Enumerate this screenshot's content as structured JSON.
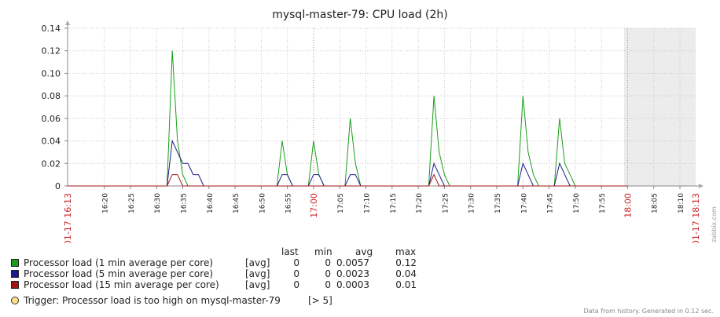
{
  "chart_data": {
    "type": "line",
    "title": "mysql-master-79: CPU load (2h)",
    "y_ticks": [
      "0.14",
      "0.12",
      "0.10",
      "0.08",
      "0.06",
      "0.04",
      "0.02",
      "0"
    ],
    "ylim": [
      0,
      0.14
    ],
    "xlim": [
      "16:13",
      "18:13"
    ],
    "x_start_label": "01-17 16:13",
    "x_end_label": "01-17 18:13",
    "x_ticks": [
      "16:20",
      "16:25",
      "16:30",
      "16:35",
      "16:40",
      "16:45",
      "16:50",
      "16:55",
      "17:00",
      "17:05",
      "17:10",
      "17:15",
      "17:20",
      "17:25",
      "17:30",
      "17:35",
      "17:40",
      "17:45",
      "17:50",
      "17:55",
      "18:00",
      "18:05",
      "18:10"
    ],
    "x_ticks_red": [
      "17:00",
      "18:00"
    ],
    "grid": true,
    "no_data_from": "18:00",
    "series": [
      {
        "name": "Processor load (1 min average per core)",
        "color": "#1a9e1a",
        "points": [
          [
            "16:13",
            0
          ],
          [
            "16:32",
            0
          ],
          [
            "16:33",
            0.12
          ],
          [
            "16:34",
            0.04
          ],
          [
            "16:35",
            0.01
          ],
          [
            "16:36",
            0
          ],
          [
            "16:53",
            0
          ],
          [
            "16:54",
            0.04
          ],
          [
            "16:55",
            0.01
          ],
          [
            "16:56",
            0
          ],
          [
            "16:59",
            0
          ],
          [
            "17:00",
            0.04
          ],
          [
            "17:01",
            0.01
          ],
          [
            "17:02",
            0
          ],
          [
            "17:06",
            0
          ],
          [
            "17:07",
            0.06
          ],
          [
            "17:08",
            0.02
          ],
          [
            "17:09",
            0
          ],
          [
            "17:22",
            0
          ],
          [
            "17:23",
            0.08
          ],
          [
            "17:24",
            0.03
          ],
          [
            "17:25",
            0.01
          ],
          [
            "17:26",
            0
          ],
          [
            "17:39",
            0
          ],
          [
            "17:40",
            0.08
          ],
          [
            "17:41",
            0.03
          ],
          [
            "17:42",
            0.01
          ],
          [
            "17:43",
            0
          ],
          [
            "17:46",
            0
          ],
          [
            "17:47",
            0.06
          ],
          [
            "17:48",
            0.02
          ],
          [
            "17:49",
            0.01
          ],
          [
            "17:50",
            0
          ],
          [
            "18:00",
            0
          ]
        ]
      },
      {
        "name": "Processor load (5 min average per core)",
        "color": "#1a1a8c",
        "points": [
          [
            "16:13",
            0
          ],
          [
            "16:32",
            0
          ],
          [
            "16:33",
            0.04
          ],
          [
            "16:34",
            0.03
          ],
          [
            "16:35",
            0.02
          ],
          [
            "16:36",
            0.02
          ],
          [
            "16:37",
            0.01
          ],
          [
            "16:38",
            0.01
          ],
          [
            "16:39",
            0
          ],
          [
            "16:53",
            0
          ],
          [
            "16:54",
            0.01
          ],
          [
            "16:55",
            0.01
          ],
          [
            "16:56",
            0
          ],
          [
            "16:59",
            0
          ],
          [
            "17:00",
            0.01
          ],
          [
            "17:01",
            0.01
          ],
          [
            "17:02",
            0
          ],
          [
            "17:06",
            0
          ],
          [
            "17:07",
            0.01
          ],
          [
            "17:08",
            0.01
          ],
          [
            "17:09",
            0
          ],
          [
            "17:22",
            0
          ],
          [
            "17:23",
            0.02
          ],
          [
            "17:24",
            0.01
          ],
          [
            "17:25",
            0
          ],
          [
            "17:39",
            0
          ],
          [
            "17:40",
            0.02
          ],
          [
            "17:41",
            0.01
          ],
          [
            "17:42",
            0
          ],
          [
            "17:46",
            0
          ],
          [
            "17:47",
            0.02
          ],
          [
            "17:48",
            0.01
          ],
          [
            "17:49",
            0
          ],
          [
            "18:00",
            0
          ]
        ]
      },
      {
        "name": "Processor load (15 min average per core)",
        "color": "#a01414",
        "points": [
          [
            "16:13",
            0
          ],
          [
            "16:32",
            0
          ],
          [
            "16:33",
            0.01
          ],
          [
            "16:34",
            0.01
          ],
          [
            "16:35",
            0
          ],
          [
            "17:22",
            0
          ],
          [
            "17:23",
            0.01
          ],
          [
            "17:24",
            0
          ],
          [
            "18:00",
            0
          ]
        ]
      }
    ]
  },
  "legend": {
    "headers": {
      "last": "last",
      "min": "min",
      "avg": "avg",
      "max": "max"
    },
    "rows": [
      {
        "name": "Processor load (1 min average per core)",
        "func": "[avg]",
        "last": "0",
        "min": "0",
        "avg": "0.0057",
        "max": "0.12",
        "color": "#1a9e1a"
      },
      {
        "name": "Processor load (5 min average per core)",
        "func": "[avg]",
        "last": "0",
        "min": "0",
        "avg": "0.0023",
        "max": "0.04",
        "color": "#1a1a8c"
      },
      {
        "name": "Processor load (15 min average per core)",
        "func": "[avg]",
        "last": "0",
        "min": "0",
        "avg": "0.0003",
        "max": "0.01",
        "color": "#a01414"
      }
    ]
  },
  "trigger": {
    "name": "Trigger: Processor load is too high on mysql-master-79",
    "value": "[> 5]",
    "color": "#ffe08a"
  },
  "footer": "Data from history. Generated in 0.12 sec.",
  "watermark": "http://www.zabbix.com"
}
